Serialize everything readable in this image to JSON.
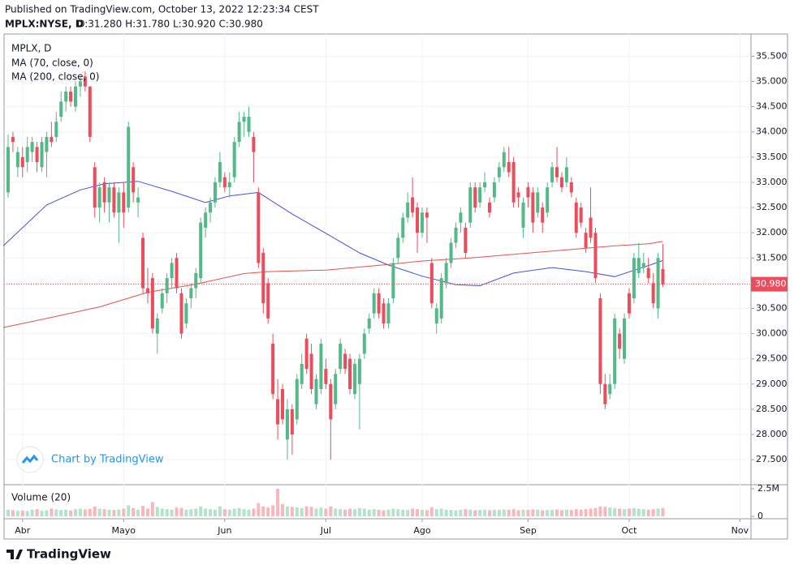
{
  "header": {
    "published": "Published on TradingView.com, October 13, 2022 12:23:34 CEST",
    "symbol": "MPLX:NYSE, D",
    "quote": "O:31.280 H:31.780 L:30.920 C:30.980"
  },
  "watermark": "Chart by TradingView",
  "footer": "TradingView",
  "chart_data": {
    "type": "candlestick",
    "title": "MPLX, D",
    "up_color": "#53b987",
    "down_color": "#eb4d5c",
    "xlim": [
      -0.84,
      154.3
    ],
    "xticks": [
      {
        "value": 3,
        "label": "Abr"
      },
      {
        "value": 24,
        "label": "Mayo"
      },
      {
        "value": 45,
        "label": "Jun"
      },
      {
        "value": 66,
        "label": "Jul"
      },
      {
        "value": 86,
        "label": "Ago"
      },
      {
        "value": 108,
        "label": "Sep"
      },
      {
        "value": 129,
        "label": "Oct"
      },
      {
        "value": 152,
        "label": "Nov"
      }
    ],
    "ylim": [
      27.02,
      35.94
    ],
    "yticks": [
      {
        "value": 27.5,
        "label": "27.500"
      },
      {
        "value": 28,
        "label": "28.000"
      },
      {
        "value": 28.5,
        "label": "28.500"
      },
      {
        "value": 29,
        "label": "29.000"
      },
      {
        "value": 29.5,
        "label": "29.500"
      },
      {
        "value": 30,
        "label": "30.000"
      },
      {
        "value": 30.5,
        "label": "30.500"
      },
      {
        "value": 31,
        "label": "31.000"
      },
      {
        "value": 31.5,
        "label": "31.500"
      },
      {
        "value": 32,
        "label": "32.000"
      },
      {
        "value": 32.5,
        "label": "32.500"
      },
      {
        "value": 33,
        "label": "33.000"
      },
      {
        "value": 33.5,
        "label": "33.500"
      },
      {
        "value": 34,
        "label": "34.000"
      },
      {
        "value": 34.5,
        "label": "34.500"
      },
      {
        "value": 35,
        "label": "35.000"
      },
      {
        "value": 35.5,
        "label": "35.500"
      }
    ],
    "grid": true,
    "ohlc": [
      [
        32.8,
        33.95,
        32.7,
        33.7
      ],
      [
        33.9,
        34.0,
        33.6,
        33.8
      ],
      [
        33.3,
        33.7,
        33.1,
        33.6
      ],
      [
        33.5,
        33.7,
        33.1,
        33.3
      ],
      [
        33.4,
        33.9,
        33.2,
        33.7
      ],
      [
        33.6,
        33.9,
        33.4,
        33.8
      ],
      [
        33.7,
        33.8,
        33.2,
        33.4
      ],
      [
        33.3,
        33.9,
        33.2,
        33.8
      ],
      [
        33.6,
        34.0,
        33.1,
        33.9
      ],
      [
        33.9,
        34.2,
        33.7,
        33.8
      ],
      [
        33.9,
        34.4,
        33.8,
        34.2
      ],
      [
        34.3,
        34.8,
        34.2,
        34.6
      ],
      [
        34.6,
        34.9,
        34.4,
        34.8
      ],
      [
        34.8,
        34.9,
        34.5,
        34.6
      ],
      [
        34.5,
        35.0,
        34.4,
        34.9
      ],
      [
        34.9,
        35.1,
        34.7,
        35.0
      ],
      [
        35.1,
        35.2,
        34.8,
        34.9
      ],
      [
        34.9,
        34.9,
        33.8,
        33.9
      ],
      [
        33.3,
        33.4,
        32.3,
        32.5
      ],
      [
        32.5,
        33.0,
        32.2,
        32.9
      ],
      [
        33.0,
        33.1,
        32.4,
        32.6
      ],
      [
        32.6,
        33.0,
        32.2,
        32.9
      ],
      [
        32.9,
        33.0,
        32.3,
        32.4
      ],
      [
        32.4,
        32.9,
        31.8,
        32.8
      ],
      [
        32.8,
        33.0,
        32.1,
        32.4
      ],
      [
        32.5,
        34.2,
        32.4,
        34.1
      ],
      [
        33.3,
        33.4,
        32.6,
        32.8
      ],
      [
        32.6,
        32.9,
        32.3,
        32.7
      ],
      [
        31.9,
        32.0,
        30.8,
        30.9
      ],
      [
        30.9,
        31.3,
        30.6,
        30.8
      ],
      [
        31.1,
        31.2,
        30.0,
        30.1
      ],
      [
        30.0,
        30.4,
        29.6,
        30.3
      ],
      [
        30.5,
        30.9,
        30.4,
        30.8
      ],
      [
        30.8,
        31.2,
        30.6,
        31.1
      ],
      [
        31.1,
        31.5,
        30.9,
        31.4
      ],
      [
        31.5,
        31.6,
        30.8,
        30.9
      ],
      [
        30.8,
        30.9,
        29.9,
        30.0
      ],
      [
        30.2,
        30.7,
        30.1,
        30.6
      ],
      [
        30.7,
        31.0,
        30.5,
        30.9
      ],
      [
        30.9,
        31.3,
        30.7,
        31.2
      ],
      [
        31.1,
        32.3,
        31.0,
        32.2
      ],
      [
        32.1,
        32.5,
        31.9,
        32.4
      ],
      [
        32.4,
        32.7,
        32.2,
        32.6
      ],
      [
        32.6,
        33.1,
        32.5,
        33.0
      ],
      [
        33.0,
        33.6,
        32.9,
        33.4
      ],
      [
        33.1,
        33.2,
        32.8,
        32.9
      ],
      [
        32.9,
        33.2,
        32.7,
        33.0
      ],
      [
        33.1,
        33.9,
        33.0,
        33.8
      ],
      [
        33.8,
        34.4,
        33.7,
        34.2
      ],
      [
        34.2,
        34.4,
        33.9,
        34.3
      ],
      [
        34.0,
        34.5,
        33.9,
        34.3
      ],
      [
        33.9,
        34.0,
        33.0,
        33.6
      ],
      [
        32.8,
        32.9,
        31.3,
        31.4
      ],
      [
        31.6,
        31.7,
        30.4,
        30.6
      ],
      [
        31.0,
        31.1,
        30.2,
        30.3
      ],
      [
        29.8,
        30.0,
        28.7,
        28.8
      ],
      [
        28.7,
        29.1,
        27.9,
        28.2
      ],
      [
        28.9,
        29.0,
        28.2,
        28.3
      ],
      [
        27.9,
        28.7,
        27.5,
        28.5
      ],
      [
        28.5,
        28.6,
        27.6,
        28.0
      ],
      [
        28.3,
        29.2,
        28.2,
        29.1
      ],
      [
        29.0,
        29.6,
        28.9,
        29.4
      ],
      [
        29.9,
        30.0,
        29.2,
        29.3
      ],
      [
        29.6,
        29.8,
        28.8,
        28.9
      ],
      [
        28.6,
        29.2,
        28.5,
        29.1
      ],
      [
        28.9,
        29.9,
        28.8,
        29.8
      ],
      [
        29.3,
        29.5,
        28.9,
        29.0
      ],
      [
        29.0,
        29.1,
        27.5,
        28.3
      ],
      [
        28.6,
        29.3,
        28.5,
        29.2
      ],
      [
        29.3,
        29.9,
        29.2,
        29.8
      ],
      [
        29.6,
        29.7,
        29.2,
        29.3
      ],
      [
        29.5,
        29.6,
        28.8,
        28.9
      ],
      [
        28.8,
        29.5,
        28.7,
        29.4
      ],
      [
        29.0,
        29.6,
        28.1,
        29.5
      ],
      [
        29.6,
        30.1,
        29.5,
        30.0
      ],
      [
        30.1,
        30.4,
        30.0,
        30.3
      ],
      [
        30.4,
        30.9,
        30.3,
        30.8
      ],
      [
        30.8,
        30.9,
        30.3,
        30.4
      ],
      [
        30.6,
        30.7,
        30.1,
        30.2
      ],
      [
        30.2,
        30.7,
        30.1,
        30.6
      ],
      [
        30.7,
        31.5,
        30.6,
        31.4
      ],
      [
        31.5,
        32.0,
        31.4,
        31.9
      ],
      [
        31.9,
        32.4,
        31.8,
        32.3
      ],
      [
        32.3,
        32.8,
        32.2,
        32.6
      ],
      [
        32.7,
        33.1,
        32.3,
        32.4
      ],
      [
        32.5,
        32.6,
        31.6,
        32.0
      ],
      [
        32.0,
        32.5,
        31.9,
        32.4
      ],
      [
        32.4,
        32.5,
        31.8,
        32.3
      ],
      [
        31.4,
        31.5,
        30.5,
        30.6
      ],
      [
        30.2,
        30.6,
        30.0,
        30.5
      ],
      [
        30.3,
        31.2,
        30.2,
        31.1
      ],
      [
        31.0,
        31.5,
        30.9,
        31.4
      ],
      [
        31.4,
        31.9,
        31.3,
        31.8
      ],
      [
        31.8,
        32.2,
        31.7,
        32.1
      ],
      [
        32.2,
        32.5,
        32.0,
        32.4
      ],
      [
        32.1,
        32.2,
        31.5,
        31.6
      ],
      [
        32.2,
        33.0,
        32.1,
        32.9
      ],
      [
        32.9,
        33.0,
        32.4,
        32.5
      ],
      [
        32.6,
        33.0,
        32.5,
        32.9
      ],
      [
        32.9,
        33.2,
        32.8,
        33.0
      ],
      [
        32.6,
        32.7,
        32.3,
        32.4
      ],
      [
        32.7,
        33.1,
        32.6,
        33.0
      ],
      [
        33.1,
        33.4,
        33.0,
        33.3
      ],
      [
        33.3,
        33.7,
        33.2,
        33.6
      ],
      [
        33.4,
        33.7,
        33.1,
        33.2
      ],
      [
        33.4,
        33.5,
        32.5,
        32.6
      ],
      [
        32.8,
        32.9,
        32.5,
        32.7
      ],
      [
        32.1,
        32.7,
        31.9,
        32.6
      ],
      [
        32.9,
        33.0,
        32.5,
        32.7
      ],
      [
        32.8,
        32.9,
        32.0,
        32.2
      ],
      [
        32.4,
        32.9,
        32.3,
        32.8
      ],
      [
        32.5,
        32.6,
        32.0,
        32.2
      ],
      [
        32.4,
        33.0,
        32.3,
        32.9
      ],
      [
        33.0,
        33.4,
        32.9,
        33.3
      ],
      [
        33.3,
        33.7,
        33.0,
        33.1
      ],
      [
        33.1,
        33.2,
        32.8,
        32.9
      ],
      [
        33.0,
        33.5,
        32.9,
        33.3
      ],
      [
        33.0,
        33.1,
        32.7,
        32.8
      ],
      [
        32.6,
        32.7,
        31.9,
        32.0
      ],
      [
        32.5,
        32.6,
        32.1,
        32.2
      ],
      [
        32.0,
        32.1,
        31.6,
        31.7
      ],
      [
        32.3,
        32.9,
        31.8,
        31.9
      ],
      [
        32.0,
        32.1,
        31.0,
        31.1
      ],
      [
        30.7,
        30.8,
        28.8,
        29.0
      ],
      [
        29.0,
        29.2,
        28.5,
        28.6
      ],
      [
        28.8,
        29.2,
        28.7,
        29.0
      ],
      [
        29.0,
        30.4,
        28.9,
        30.3
      ],
      [
        30.0,
        30.1,
        29.5,
        29.7
      ],
      [
        29.5,
        30.4,
        29.4,
        30.3
      ],
      [
        30.8,
        30.9,
        30.3,
        30.4
      ],
      [
        30.7,
        31.6,
        30.6,
        31.5
      ],
      [
        31.2,
        31.8,
        31.1,
        31.5
      ],
      [
        31.3,
        31.6,
        31.2,
        31.4
      ],
      [
        31.3,
        31.5,
        31.0,
        31.1
      ],
      [
        31.0,
        31.2,
        30.5,
        30.6
      ],
      [
        30.5,
        31.6,
        30.3,
        31.5
      ],
      [
        31.28,
        31.78,
        30.92,
        30.98
      ]
    ],
    "series": [
      {
        "name": "MA (70, close, 0)",
        "color": "#4a4ee0",
        "x": [
          -1,
          8,
          15,
          20,
          27,
          34,
          41,
          46,
          52,
          59,
          66,
          73,
          79,
          86,
          93,
          98,
          105,
          113,
          120,
          126,
          133,
          136
        ],
        "values": [
          31.74,
          32.55,
          32.85,
          32.97,
          33.02,
          32.82,
          32.6,
          32.73,
          32.8,
          32.37,
          31.99,
          31.6,
          31.36,
          31.14,
          30.97,
          30.95,
          31.2,
          31.31,
          31.23,
          31.13,
          31.35,
          31.45
        ]
      },
      {
        "name": "MA (200, close, 0)",
        "color": "#e5534b",
        "x": [
          -1,
          8,
          19,
          29,
          39,
          49,
          54,
          66,
          79,
          86,
          96,
          106,
          116,
          126,
          133,
          136
        ],
        "values": [
          30.12,
          30.3,
          30.53,
          30.82,
          30.98,
          31.19,
          31.23,
          31.26,
          31.37,
          31.44,
          31.5,
          31.58,
          31.66,
          31.74,
          31.78,
          31.83
        ]
      }
    ],
    "last_price": {
      "value": 30.98,
      "label": "30.980"
    },
    "volume": {
      "title": "Volume (20)",
      "up_color": "#b5e2cc",
      "down_color": "#f6b8bd",
      "ylim": [
        0,
        2870000
      ],
      "yticks": [
        0,
        {
          "value": 2500000,
          "label": "2.5M"
        }
      ],
      "values": [
        600000,
        550000,
        500000,
        520000,
        480000,
        600000,
        650000,
        500000,
        550000,
        700000,
        620000,
        580000,
        600000,
        540000,
        650000,
        700000,
        620000,
        680000,
        900000,
        700000,
        650000,
        600000,
        580000,
        620000,
        700000,
        1000000,
        750000,
        600000,
        950000,
        700000,
        1300000,
        850000,
        700000,
        650000,
        600000,
        800000,
        750000,
        600000,
        650000,
        700000,
        900000,
        700000,
        650000,
        600000,
        900000,
        650000,
        600000,
        700000,
        750000,
        650000,
        600000,
        700000,
        1200000,
        900000,
        800000,
        1000000,
        2500000,
        1100000,
        900000,
        850000,
        800000,
        750000,
        900000,
        850000,
        700000,
        800000,
        700000,
        900000,
        700000,
        650000,
        600000,
        700000,
        650000,
        750000,
        700000,
        600000,
        650000,
        600000,
        550000,
        600000,
        700000,
        650000,
        600000,
        580000,
        700000,
        650000,
        600000,
        550000,
        800000,
        650000,
        700000,
        600000,
        580000,
        550000,
        600000,
        650000,
        600000,
        550000,
        580000,
        600000,
        550000,
        600000,
        580000,
        620000,
        600000,
        650000,
        550000,
        600000,
        580000,
        620000,
        600000,
        550000,
        580000,
        600000,
        620000,
        550000,
        600000,
        580000,
        650000,
        600000,
        650000,
        700000,
        750000,
        900000,
        850000,
        800000,
        750000,
        700000,
        650000,
        700000,
        750000,
        700000,
        650000,
        600000,
        650000,
        700000,
        750000
      ]
    }
  }
}
